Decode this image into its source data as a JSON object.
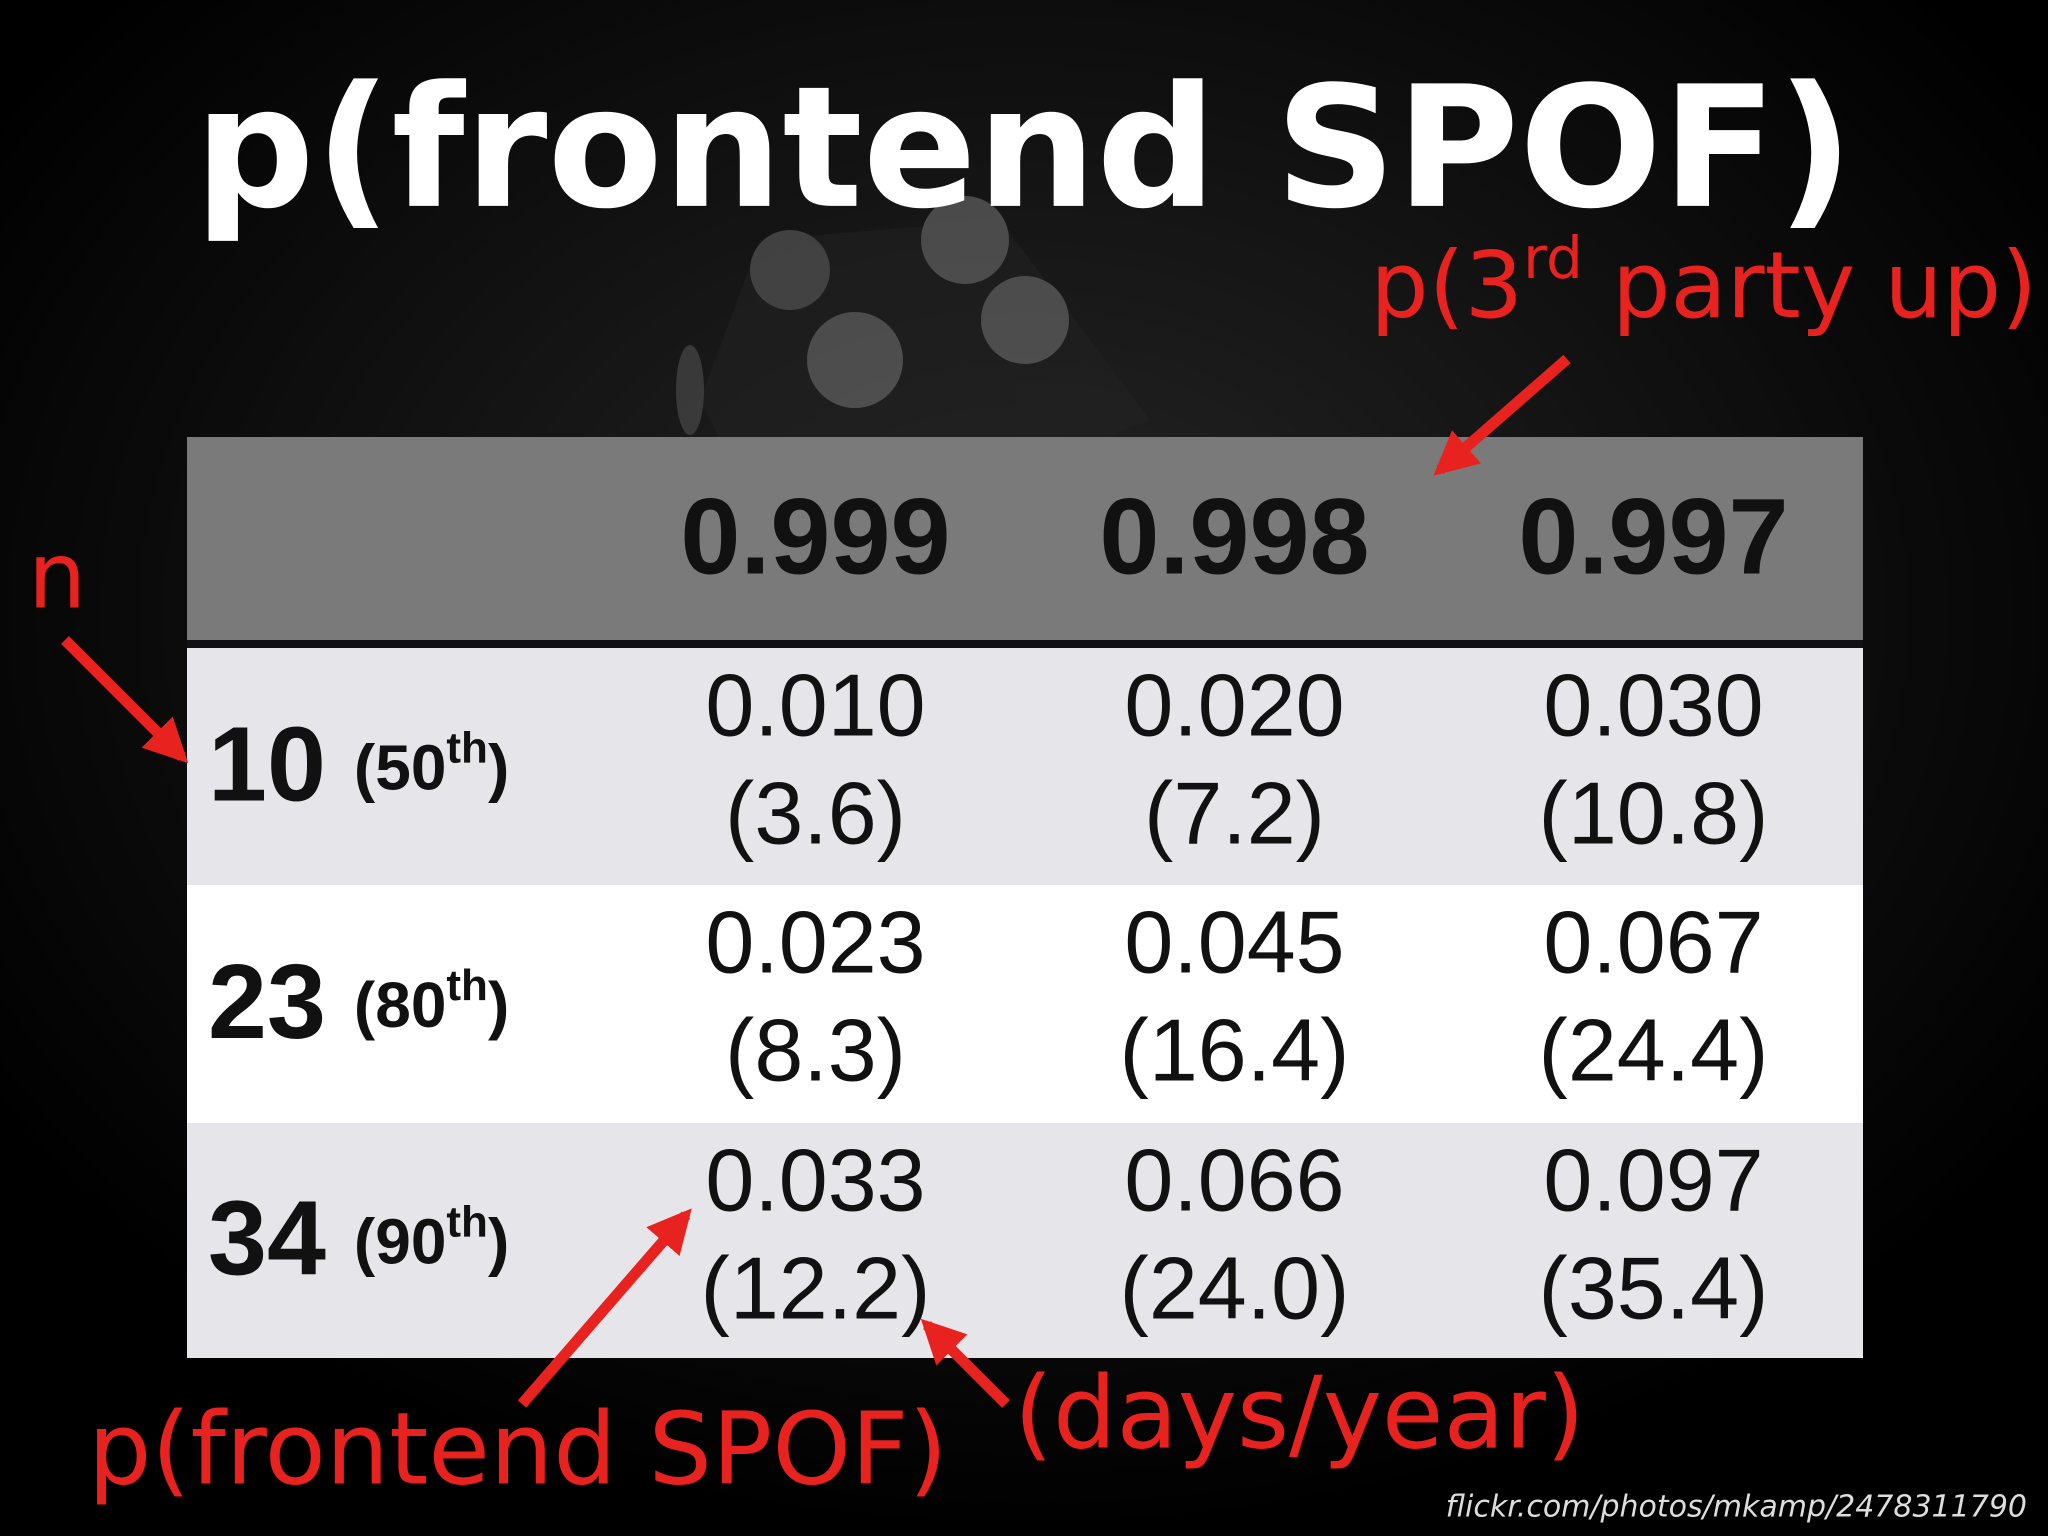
{
  "title": "p(frontend SPOF)",
  "table": {
    "header": [
      "0.999",
      "0.998",
      "0.997"
    ],
    "rows": [
      {
        "n": "10",
        "rank": "(50",
        "rank_sup": "th",
        "rank_close": ")",
        "cells": [
          [
            "0.010",
            "(3.6)"
          ],
          [
            "0.020",
            "(7.2)"
          ],
          [
            "0.030",
            "(10.8)"
          ]
        ]
      },
      {
        "n": "23",
        "rank": "(80",
        "rank_sup": "th",
        "rank_close": ")",
        "cells": [
          [
            "0.023",
            "(8.3)"
          ],
          [
            "0.045",
            "(16.4)"
          ],
          [
            "0.067",
            "(24.4)"
          ]
        ]
      },
      {
        "n": "34",
        "rank": "(90",
        "rank_sup": "th",
        "rank_close": ")",
        "cells": [
          [
            "0.033",
            "(12.2)"
          ],
          [
            "0.066",
            "(24.0)"
          ],
          [
            "0.097",
            "(35.4)"
          ]
        ]
      }
    ]
  },
  "annotations": {
    "column_axis": {
      "before": "p(3",
      "sup": "rd",
      "after": " party up)"
    },
    "row_axis": "n",
    "cell_value": "p(frontend SPOF)",
    "cell_days": "(days/year)"
  },
  "credit": "flickr.com/photos/mkamp/2478311790"
}
